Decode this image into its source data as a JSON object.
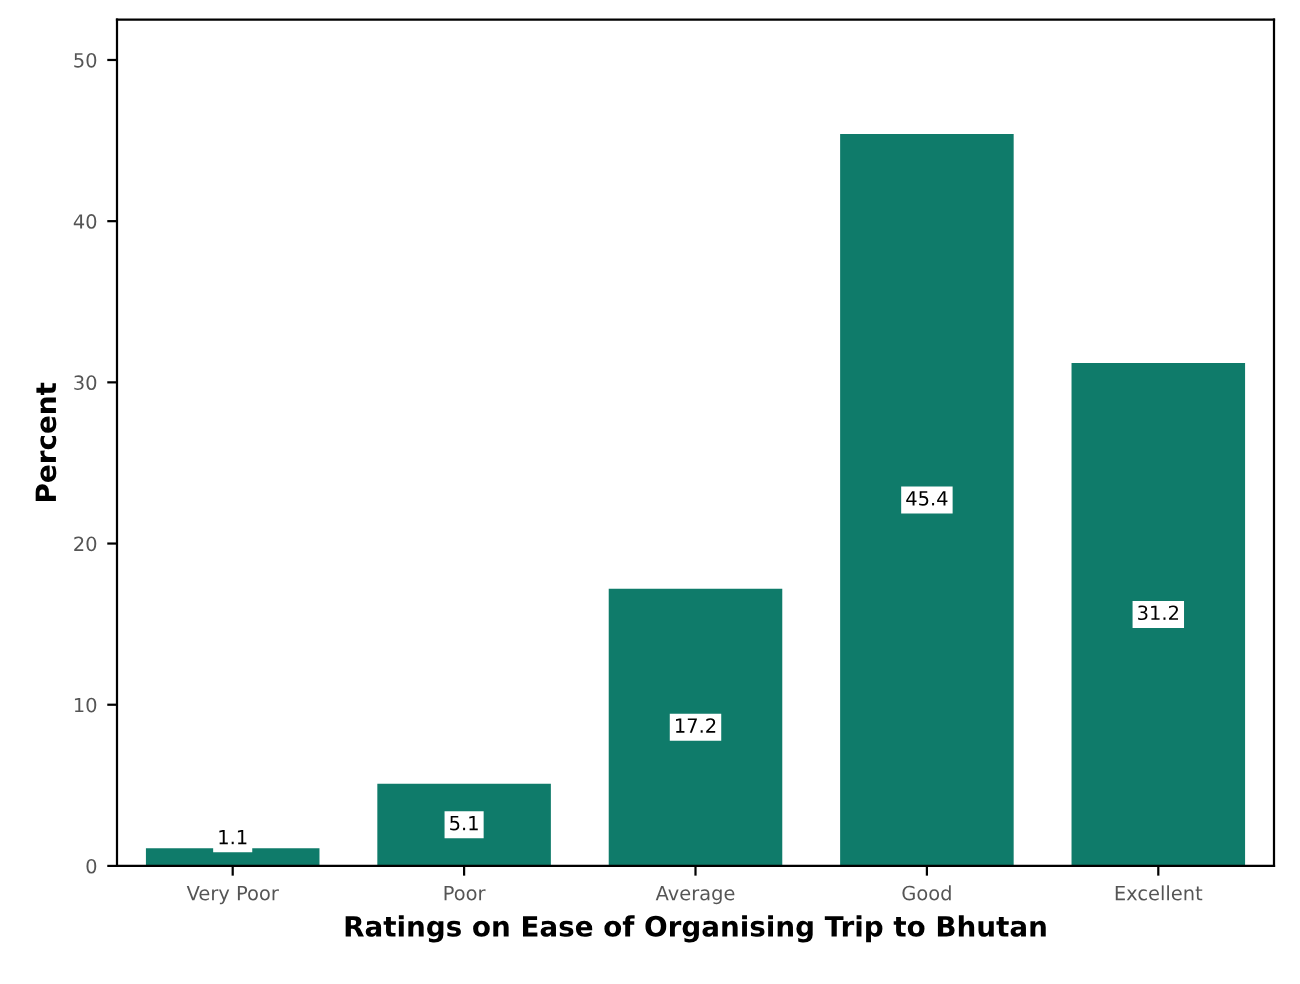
{
  "chart_data": {
    "type": "bar",
    "xlabel": "Ratings on Ease of Organising Trip to Bhutan",
    "ylabel": "Percent",
    "categories": [
      "Very Poor",
      "Poor",
      "Average",
      "Good",
      "Excellent"
    ],
    "values": [
      1.1,
      5.1,
      17.2,
      45.4,
      31.2
    ],
    "color": "#0f7b6a",
    "ylim": [
      0,
      52.5
    ],
    "yticks": [
      0,
      10,
      20,
      30,
      40,
      50
    ],
    "grid": false,
    "data_labels": true
  }
}
